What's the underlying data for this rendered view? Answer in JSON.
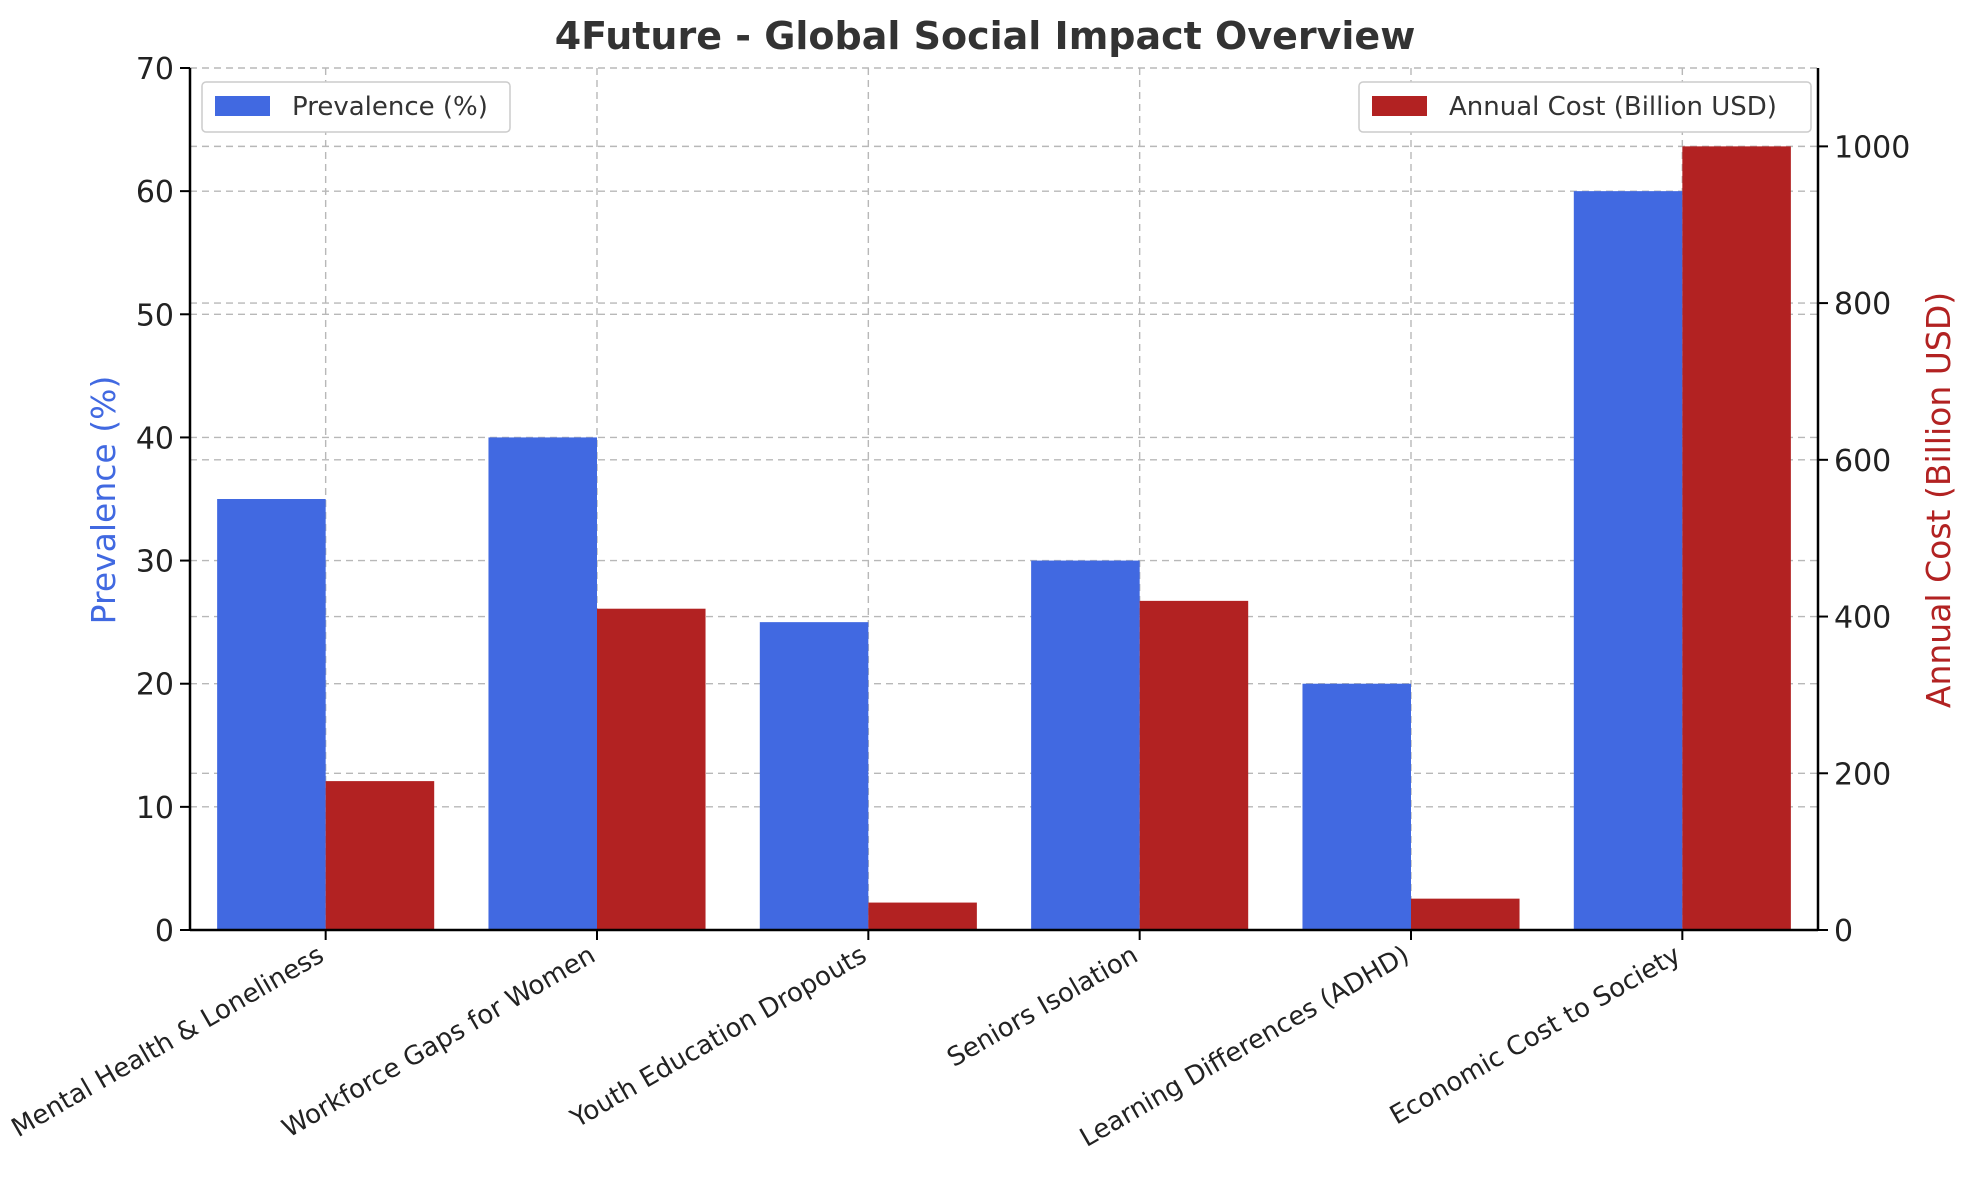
{
  "colors": {
    "prevalence": "#4169E1",
    "cost": "#B22222",
    "left_label": "#4169E1",
    "right_label": "#B22222"
  },
  "chart_data": {
    "type": "bar",
    "title": "4Future - Global Social Impact Overview",
    "categories": [
      "Mental Health & Loneliness",
      "Workforce Gaps for Women",
      "Youth Education Dropouts",
      "Seniors Isolation",
      "Learning Differences (ADHD)",
      "Economic Cost to Society"
    ],
    "series": [
      {
        "name": "Prevalence (%)",
        "axis": "left",
        "color": "#4169E1",
        "values": [
          35,
          40,
          25,
          30,
          20,
          60
        ]
      },
      {
        "name": "Annual Cost (Billion USD)",
        "axis": "right",
        "color": "#B22222",
        "values": [
          190,
          410,
          35,
          420,
          40,
          1000
        ]
      }
    ],
    "ylabel": "Prevalence (%)",
    "ylabel_right": "Annual Cost (Billion USD)",
    "ylim": [
      0,
      70
    ],
    "ylim_right": [
      0,
      1100
    ],
    "yticks": [
      0,
      10,
      20,
      30,
      40,
      50,
      60,
      70
    ],
    "yticks_right": [
      0,
      200,
      400,
      600,
      800,
      1000
    ],
    "grid": true,
    "legend_left": "top-left",
    "legend_right": "top-right"
  }
}
